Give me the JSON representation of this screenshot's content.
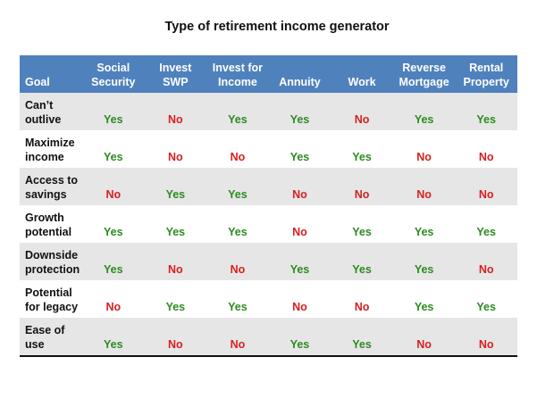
{
  "chart_data": {
    "type": "table",
    "title": "Type of retirement income generator",
    "header": {
      "goal": "Goal",
      "columns": [
        [
          "Social",
          "Security"
        ],
        [
          "Invest",
          "SWP"
        ],
        [
          "Invest for",
          "Income"
        ],
        [
          "Annuity"
        ],
        [
          "Work"
        ],
        [
          "Reverse",
          "Mortgage"
        ],
        [
          "Rental",
          "Property"
        ]
      ]
    },
    "rows": [
      {
        "goal": [
          "Can’t",
          "outlive"
        ],
        "values": [
          "Yes",
          "No",
          "Yes",
          "Yes",
          "No",
          "Yes",
          "Yes"
        ]
      },
      {
        "goal": [
          "Maximize",
          "income"
        ],
        "values": [
          "Yes",
          "No",
          "No",
          "Yes",
          "Yes",
          "No",
          "No"
        ]
      },
      {
        "goal": [
          "Access to",
          "savings"
        ],
        "values": [
          "No",
          "Yes",
          "Yes",
          "No",
          "No",
          "No",
          "No"
        ]
      },
      {
        "goal": [
          "Growth",
          "potential"
        ],
        "values": [
          "Yes",
          "Yes",
          "Yes",
          "No",
          "Yes",
          "Yes",
          "Yes"
        ]
      },
      {
        "goal": [
          "Downside",
          "protection"
        ],
        "values": [
          "Yes",
          "No",
          "No",
          "Yes",
          "Yes",
          "Yes",
          "No"
        ]
      },
      {
        "goal": [
          "Potential",
          "for legacy"
        ],
        "values": [
          "No",
          "Yes",
          "Yes",
          "No",
          "No",
          "Yes",
          "Yes"
        ]
      },
      {
        "goal": [
          "Ease of",
          "use"
        ],
        "values": [
          "Yes",
          "No",
          "No",
          "Yes",
          "Yes",
          "No",
          "No"
        ]
      }
    ],
    "colors": {
      "header_bg": "#4f81bd",
      "yes": "#2e8b21",
      "no": "#d8201f",
      "stripe": "#e6e6e6"
    }
  }
}
